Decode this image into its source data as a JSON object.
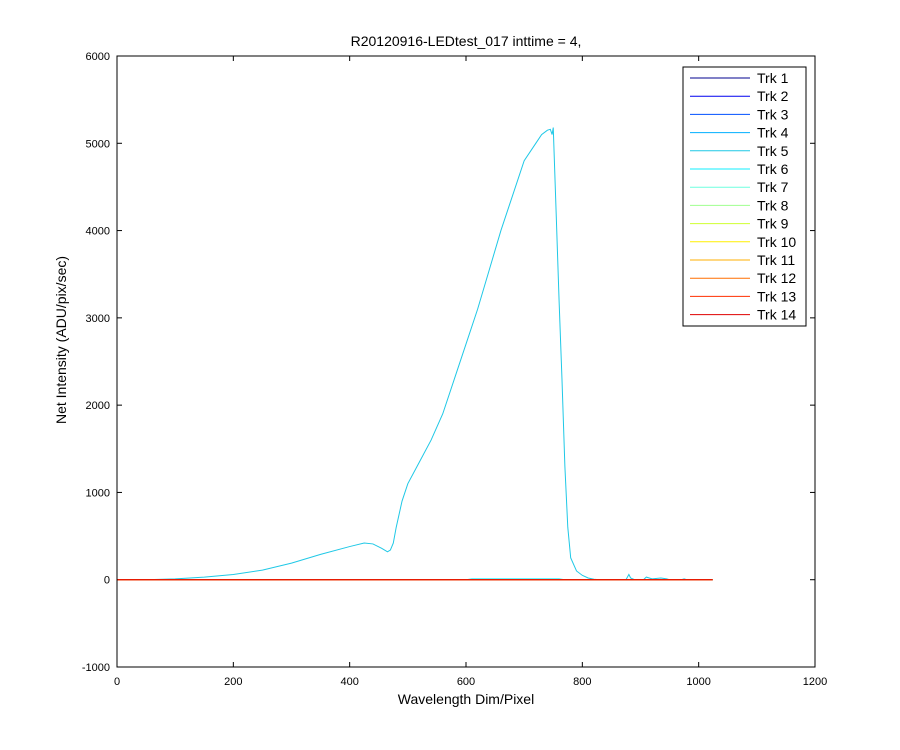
{
  "chart_data": {
    "type": "line",
    "title": "R20120916-LEDtest_017 inttime = 4,",
    "xlabel": "Wavelength Dim/Pixel",
    "ylabel": "Net Intensity (ADU/pix/sec)",
    "xlim": [
      0,
      1200
    ],
    "ylim": [
      -1000,
      6000
    ],
    "xticks": [
      "0",
      "200",
      "400",
      "600",
      "800",
      "1000",
      "1200"
    ],
    "yticks": [
      "-1000",
      "0",
      "1000",
      "2000",
      "3000",
      "4000",
      "5000",
      "6000"
    ],
    "grid": false,
    "legend_position": "top-right",
    "series": [
      {
        "name": "Trk 1",
        "color": "#00008f",
        "x": [
          0,
          1024
        ],
        "y": [
          0,
          0
        ]
      },
      {
        "name": "Trk 2",
        "color": "#0000ef",
        "x": [
          0,
          1024
        ],
        "y": [
          0,
          0
        ]
      },
      {
        "name": "Trk 3",
        "color": "#004fff",
        "x": [
          0,
          1024
        ],
        "y": [
          0,
          0
        ]
      },
      {
        "name": "Trk 4",
        "color": "#00afff",
        "x": [
          0,
          1024
        ],
        "y": [
          0,
          0
        ]
      },
      {
        "name": "Trk 5",
        "color": "#1fc8e6",
        "x": [
          0,
          50,
          100,
          150,
          200,
          250,
          300,
          350,
          400,
          425,
          440,
          455,
          465,
          470,
          475,
          480,
          490,
          500,
          520,
          540,
          560,
          580,
          600,
          620,
          640,
          660,
          680,
          700,
          720,
          730,
          740,
          745,
          748,
          750,
          755,
          760,
          765,
          770,
          775,
          780,
          790,
          800,
          810,
          820,
          830,
          860,
          875,
          880,
          883,
          890,
          905,
          910,
          920,
          935,
          945,
          950,
          970,
          975,
          980,
          1024
        ],
        "y": [
          0,
          0,
          10,
          30,
          60,
          110,
          190,
          290,
          380,
          420,
          410,
          360,
          320,
          340,
          420,
          600,
          900,
          1100,
          1350,
          1600,
          1900,
          2300,
          2700,
          3100,
          3550,
          4000,
          4400,
          4800,
          5000,
          5100,
          5150,
          5160,
          5100,
          5180,
          4200,
          3200,
          2300,
          1300,
          600,
          250,
          100,
          50,
          20,
          5,
          0,
          0,
          0,
          60,
          20,
          0,
          0,
          30,
          10,
          20,
          10,
          0,
          0,
          10,
          0,
          0
        ]
      },
      {
        "name": "Trk 6",
        "color": "#0fefff",
        "x": [
          0,
          600,
          610,
          760,
          770,
          1024
        ],
        "y": [
          0,
          0,
          10,
          10,
          0,
          0
        ]
      },
      {
        "name": "Trk 7",
        "color": "#6fffdf",
        "x": [
          0,
          1024
        ],
        "y": [
          0,
          0
        ]
      },
      {
        "name": "Trk 8",
        "color": "#9fff8f",
        "x": [
          0,
          1024
        ],
        "y": [
          0,
          0
        ]
      },
      {
        "name": "Trk 9",
        "color": "#cfff30",
        "x": [
          0,
          1024
        ],
        "y": [
          0,
          0
        ]
      },
      {
        "name": "Trk 10",
        "color": "#ffef00",
        "x": [
          0,
          1024
        ],
        "y": [
          0,
          0
        ]
      },
      {
        "name": "Trk 11",
        "color": "#ffaf00",
        "x": [
          0,
          1024
        ],
        "y": [
          0,
          0
        ]
      },
      {
        "name": "Trk 12",
        "color": "#ff6f00",
        "x": [
          0,
          1024
        ],
        "y": [
          0,
          0
        ]
      },
      {
        "name": "Trk 13",
        "color": "#ff2f00",
        "x": [
          0,
          1024
        ],
        "y": [
          0,
          0
        ]
      },
      {
        "name": "Trk 14",
        "color": "#df0000",
        "x": [
          0,
          1024
        ],
        "y": [
          0,
          0
        ]
      }
    ]
  }
}
